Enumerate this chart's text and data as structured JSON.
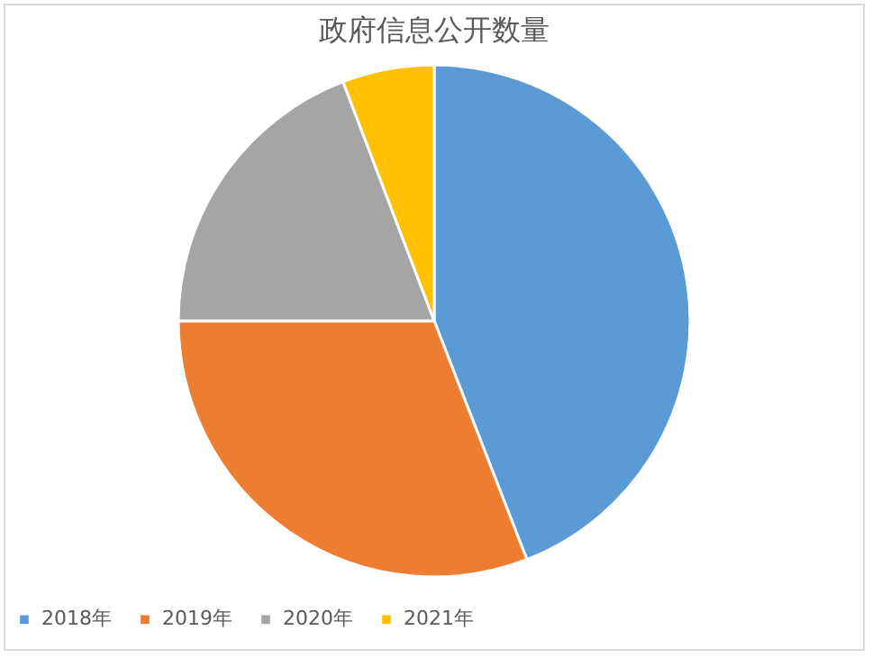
{
  "chart_data": {
    "type": "pie",
    "title": "政府信息公开数量",
    "categories": [
      "2018年",
      "2019年",
      "2020年",
      "2021年"
    ],
    "values": [
      44.1,
      30.9,
      19.2,
      5.8
    ],
    "colors": [
      "#5b9bd5",
      "#ed7d31",
      "#a5a5a5",
      "#ffc000"
    ],
    "legend": "bottom"
  }
}
